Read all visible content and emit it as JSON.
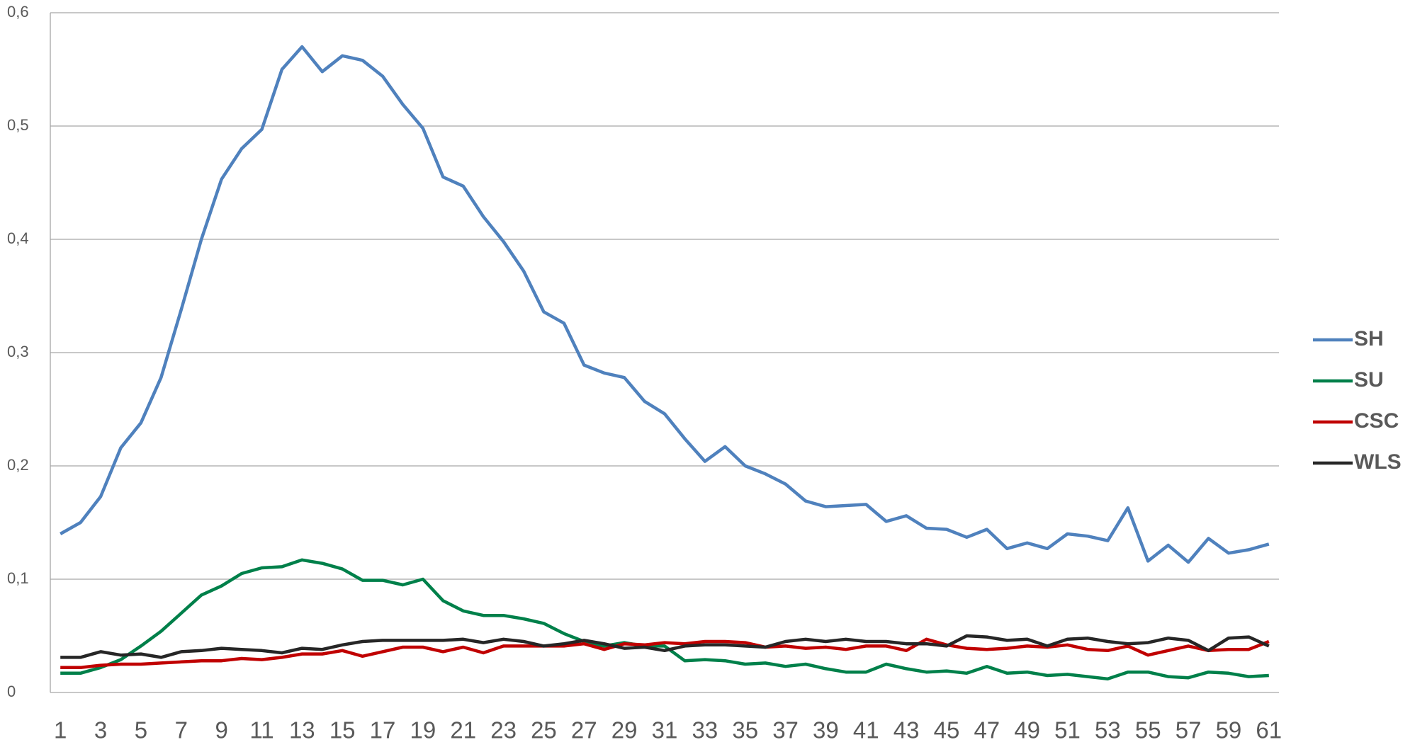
{
  "chart_data": {
    "type": "line",
    "categories": [
      "1",
      null,
      "3",
      null,
      "5",
      null,
      "7",
      null,
      "9",
      null,
      "11",
      null,
      "13",
      null,
      "15",
      null,
      "17",
      null,
      "19",
      null,
      "21",
      null,
      "23",
      null,
      "25",
      null,
      "27",
      null,
      "29",
      null,
      "31",
      null,
      "33",
      null,
      "35",
      null,
      "37",
      null,
      "39",
      null,
      "41",
      null,
      "43",
      null,
      "45",
      null,
      "47",
      null,
      "49",
      null,
      "51",
      null,
      "53",
      null,
      "55",
      null,
      "57",
      null,
      "59",
      null,
      "61"
    ],
    "ylim": [
      0,
      0.6
    ],
    "yticks": [
      0,
      {
        "value": 0.1,
        "label": "0,1"
      },
      {
        "value": 0.2,
        "label": "0,2"
      },
      {
        "value": 0.3,
        "label": "0,3"
      },
      {
        "value": 0.4,
        "label": "0,4"
      },
      {
        "value": 0.5,
        "label": "0,5"
      },
      {
        "value": 0.6,
        "label": "0,6"
      }
    ],
    "grid": true,
    "legend": "right",
    "series": [
      {
        "name": "SH",
        "color": "#4f81bd",
        "values": [
          0.14,
          0.15,
          0.173,
          0.216,
          0.238,
          0.278,
          0.338,
          0.4,
          0.453,
          0.48,
          0.497,
          0.55,
          0.57,
          0.548,
          0.562,
          0.558,
          0.544,
          0.519,
          0.498,
          0.455,
          0.447,
          0.42,
          0.398,
          0.372,
          0.336,
          0.326,
          0.289,
          0.282,
          0.278,
          0.257,
          0.246,
          0.224,
          0.204,
          0.217,
          0.2,
          0.193,
          0.184,
          0.169,
          0.164,
          0.165,
          0.166,
          0.151,
          0.156,
          0.145,
          0.144,
          0.137,
          0.144,
          0.127,
          0.132,
          0.127,
          0.14,
          0.138,
          0.134,
          0.163,
          0.116,
          0.13,
          0.115,
          0.136,
          0.123,
          0.126,
          0.131
        ]
      },
      {
        "name": "SU",
        "color": "#00804a",
        "values": [
          0.017,
          0.017,
          0.022,
          0.029,
          0.041,
          0.054,
          0.07,
          0.086,
          0.094,
          0.105,
          0.11,
          0.111,
          0.117,
          0.114,
          0.109,
          0.099,
          0.099,
          0.095,
          0.1,
          0.081,
          0.072,
          0.068,
          0.068,
          0.065,
          0.061,
          0.052,
          0.045,
          0.041,
          0.044,
          0.041,
          0.041,
          0.028,
          0.029,
          0.028,
          0.025,
          0.026,
          0.023,
          0.025,
          0.021,
          0.018,
          0.018,
          0.025,
          0.021,
          0.018,
          0.019,
          0.017,
          0.023,
          0.017,
          0.018,
          0.015,
          0.016,
          0.014,
          0.012,
          0.018,
          0.018,
          0.014,
          0.013,
          0.018,
          0.017,
          0.014,
          0.015
        ]
      },
      {
        "name": "CSC",
        "color": "#c00000",
        "values": [
          0.022,
          0.022,
          0.024,
          0.025,
          0.025,
          0.026,
          0.027,
          0.028,
          0.028,
          0.03,
          0.029,
          0.031,
          0.034,
          0.034,
          0.037,
          0.032,
          0.036,
          0.04,
          0.04,
          0.036,
          0.04,
          0.035,
          0.041,
          0.041,
          0.041,
          0.041,
          0.043,
          0.038,
          0.043,
          0.042,
          0.044,
          0.043,
          0.045,
          0.045,
          0.044,
          0.04,
          0.041,
          0.039,
          0.04,
          0.038,
          0.041,
          0.041,
          0.037,
          0.047,
          0.042,
          0.039,
          0.038,
          0.039,
          0.041,
          0.04,
          0.042,
          0.038,
          0.037,
          0.041,
          0.033,
          0.037,
          0.041,
          0.037,
          0.038,
          0.038,
          0.045
        ]
      },
      {
        "name": "WLS",
        "color": "#262626",
        "values": [
          0.031,
          0.031,
          0.036,
          0.033,
          0.034,
          0.031,
          0.036,
          0.037,
          0.039,
          0.038,
          0.037,
          0.035,
          0.039,
          0.038,
          0.042,
          0.045,
          0.046,
          0.046,
          0.046,
          0.046,
          0.047,
          0.044,
          0.047,
          0.045,
          0.041,
          0.043,
          0.046,
          0.043,
          0.039,
          0.04,
          0.037,
          0.041,
          0.042,
          0.042,
          0.041,
          0.04,
          0.045,
          0.047,
          0.045,
          0.047,
          0.045,
          0.045,
          0.043,
          0.043,
          0.041,
          0.05,
          0.049,
          0.046,
          0.047,
          0.041,
          0.047,
          0.048,
          0.045,
          0.043,
          0.044,
          0.048,
          0.046,
          0.037,
          0.048,
          0.049,
          0.041
        ]
      }
    ]
  }
}
